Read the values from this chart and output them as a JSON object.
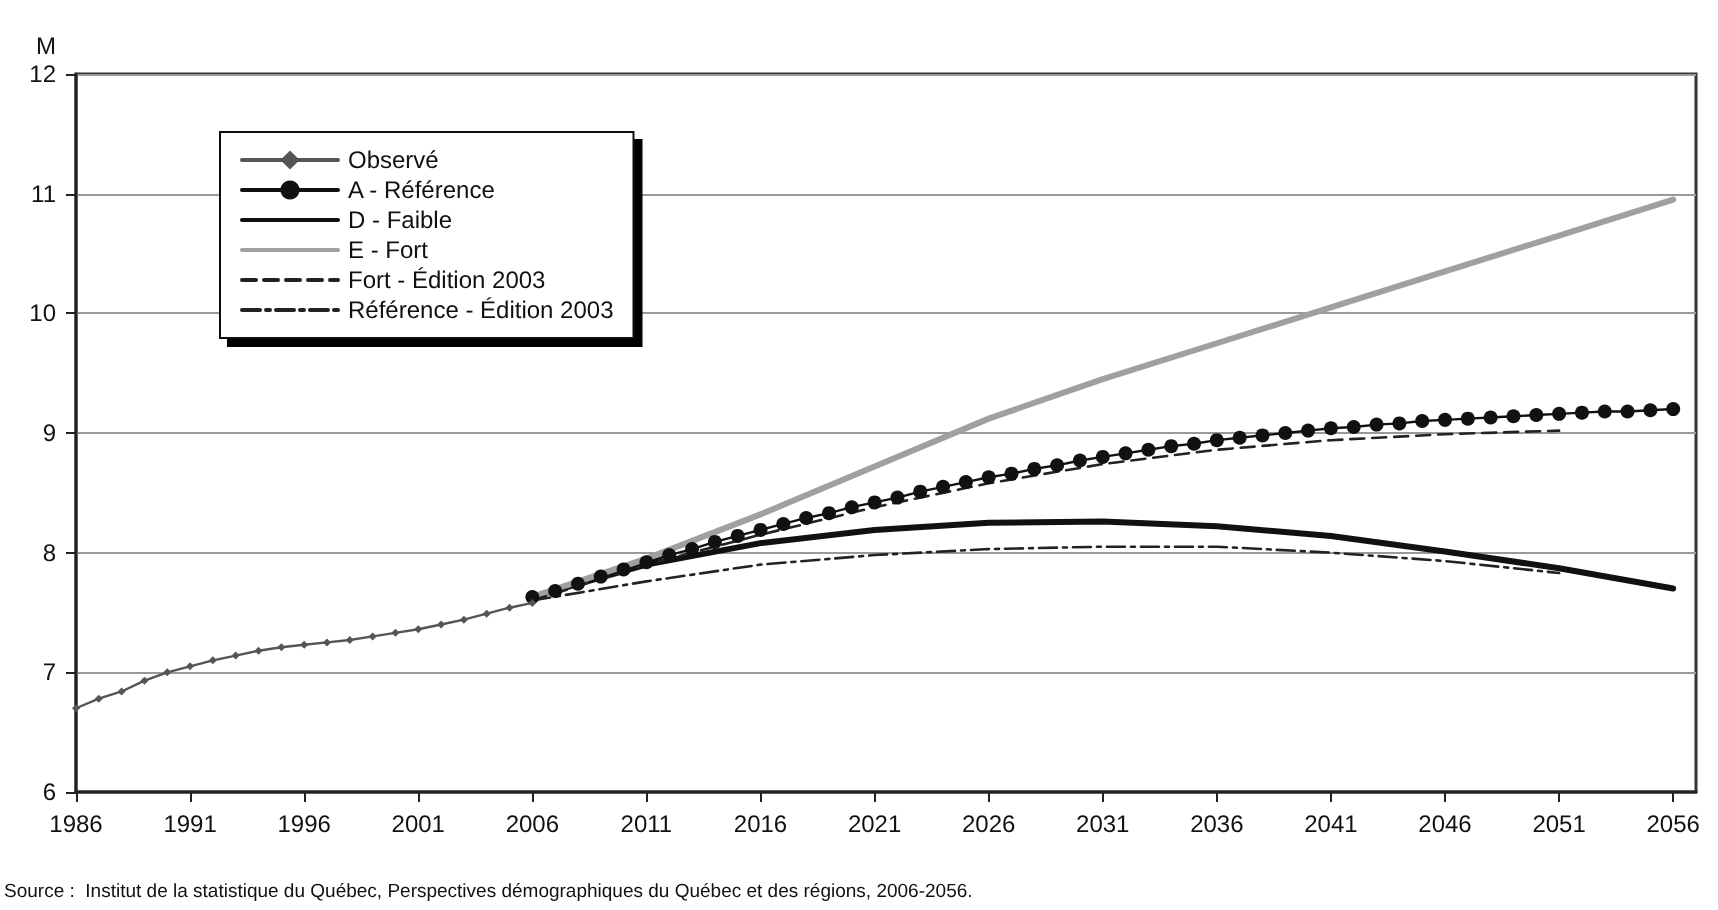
{
  "chart_data": {
    "type": "line",
    "ylabel": "M",
    "xlim": [
      1986,
      2057
    ],
    "xticks": [
      1986,
      1991,
      1996,
      2001,
      2006,
      2011,
      2016,
      2021,
      2026,
      2031,
      2036,
      2041,
      2046,
      2051,
      2056
    ],
    "ylim": [
      6,
      12
    ],
    "yticks": [
      6,
      7,
      8,
      9,
      10,
      11,
      12
    ],
    "grid": "y",
    "legend": "top left",
    "annotations": [
      "Source :  Institut de la statistique du Québec, Perspectives démographiques du Québec et des régions, 2006-2056."
    ],
    "series": [
      {
        "name": "Observé",
        "color": "#555555",
        "marker": "diamond",
        "line_style": "solid",
        "x": [
          1986,
          1987,
          1988,
          1989,
          1990,
          1991,
          1992,
          1993,
          1994,
          1995,
          1996,
          1997,
          1998,
          1999,
          2000,
          2001,
          2002,
          2003,
          2004,
          2005,
          2006
        ],
        "values": [
          6.7,
          6.78,
          6.84,
          6.93,
          7.0,
          7.05,
          7.1,
          7.14,
          7.18,
          7.21,
          7.23,
          7.25,
          7.27,
          7.3,
          7.33,
          7.36,
          7.4,
          7.44,
          7.49,
          7.54,
          7.58
        ]
      },
      {
        "name": "A - Référence",
        "color": "#111111",
        "marker": "circle",
        "line_style": "solid",
        "x": [
          2006,
          2007,
          2008,
          2009,
          2010,
          2011,
          2012,
          2013,
          2014,
          2015,
          2016,
          2017,
          2018,
          2019,
          2020,
          2021,
          2022,
          2023,
          2024,
          2025,
          2026,
          2027,
          2028,
          2029,
          2030,
          2031,
          2032,
          2033,
          2034,
          2035,
          2036,
          2037,
          2038,
          2039,
          2040,
          2041,
          2042,
          2043,
          2044,
          2045,
          2046,
          2047,
          2048,
          2049,
          2050,
          2051,
          2052,
          2053,
          2054,
          2055,
          2056
        ],
        "values": [
          7.63,
          7.68,
          7.74,
          7.8,
          7.86,
          7.92,
          7.98,
          8.03,
          8.09,
          8.14,
          8.19,
          8.24,
          8.29,
          8.33,
          8.38,
          8.42,
          8.46,
          8.51,
          8.55,
          8.59,
          8.63,
          8.66,
          8.7,
          8.73,
          8.77,
          8.8,
          8.83,
          8.86,
          8.89,
          8.91,
          8.94,
          8.96,
          8.98,
          9.0,
          9.02,
          9.04,
          9.05,
          9.07,
          9.08,
          9.1,
          9.11,
          9.12,
          9.13,
          9.14,
          9.15,
          9.16,
          9.17,
          9.18,
          9.18,
          9.19,
          9.2
        ]
      },
      {
        "name": "D - Faible",
        "color": "#111111",
        "marker": "none",
        "line_style": "solid",
        "x": [
          2006,
          2011,
          2016,
          2021,
          2026,
          2031,
          2036,
          2041,
          2046,
          2051,
          2056
        ],
        "values": [
          7.63,
          7.9,
          8.08,
          8.19,
          8.25,
          8.26,
          8.22,
          8.14,
          8.01,
          7.87,
          7.7
        ]
      },
      {
        "name": "E - Fort",
        "color": "#a0a0a0",
        "marker": "none",
        "line_style": "solid",
        "x": [
          2006,
          2011,
          2016,
          2021,
          2026,
          2031,
          2036,
          2041,
          2046,
          2051,
          2056
        ],
        "values": [
          7.63,
          7.95,
          8.32,
          8.72,
          9.12,
          9.45,
          9.75,
          10.05,
          10.35,
          10.65,
          10.95
        ]
      },
      {
        "name": "Fort - Édition 2003",
        "color": "#222222",
        "marker": "none",
        "line_style": "dashed",
        "x": [
          2006,
          2011,
          2016,
          2021,
          2026,
          2031,
          2036,
          2041,
          2046,
          2051
        ],
        "values": [
          7.6,
          7.9,
          8.15,
          8.38,
          8.58,
          8.74,
          8.86,
          8.94,
          8.99,
          9.02
        ]
      },
      {
        "name": "Référence - Édition 2003",
        "color": "#222222",
        "marker": "none",
        "line_style": "dashdot",
        "x": [
          2006,
          2011,
          2016,
          2021,
          2026,
          2031,
          2036,
          2041,
          2046,
          2051
        ],
        "values": [
          7.6,
          7.76,
          7.9,
          7.98,
          8.03,
          8.05,
          8.05,
          8.0,
          7.93,
          7.83
        ]
      }
    ]
  }
}
